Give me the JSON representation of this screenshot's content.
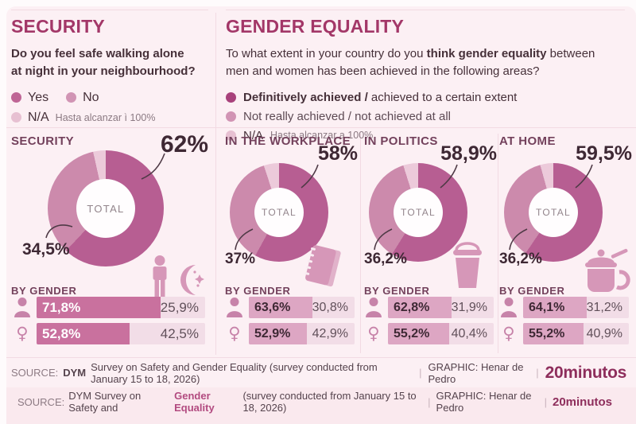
{
  "colors": {
    "card": "#fcf0f4",
    "line": "#f2dae3",
    "title": "#a33768",
    "q": "#463039",
    "gray": "#8b7982",
    "plum": "#73415c",
    "dark": "#3e2834",
    "hole": "#fffdfe",
    "slice_main": "#b75e92",
    "slice_secondary": "#cc8aac",
    "slice_na": "#eccada",
    "dot_achieved": "#a8417b",
    "dot_yes": "#bf6595",
    "dot_no": "#d194b4",
    "dot_na": "#e7c0d2",
    "bar_fill_security": "#c9719e",
    "bar_fill_ge": "#dda6c3",
    "bar_rest": "#f2dde7",
    "bar_rest_text": "#61505a",
    "icon_pink": "#d697b8",
    "icon_dark": "#c783a9",
    "brand": "#8e2e5c",
    "highlight": "#b24b80",
    "source2_bg": "#fae9ee"
  },
  "security_panel": {
    "title": "SECURITY",
    "question_line1": "Do you feel safe walking alone",
    "question_line2": "at night in your neighbourhood?",
    "legend_yes": "Yes",
    "legend_no": "No",
    "legend_na": "N/A",
    "legend_na_note": "Hasta alcanzar ì 100%"
  },
  "gender_panel": {
    "title": "GENDER EQUALITY",
    "question_pre": "To what extent in your country do you ",
    "question_bold": "think gender equality",
    "question_post": " between",
    "question_line2": "men and women has been achieved in the following areas?",
    "legend_achieved_bold": "Definitively achieved /",
    "legend_achieved_rest": " achieved to a certain extent",
    "legend_not": "Not really achieved / not achieved at all",
    "legend_na": "N/A",
    "legend_na_note": "Hasta alcanzar a 100%"
  },
  "charts": [
    {
      "label": "SECURITY",
      "main": "62%",
      "secondary": "34,5%",
      "total": "TOTAL",
      "by_gender": "BY GENDER",
      "male_value": "71,8%",
      "male_rest": "25,9%",
      "female_value": "52,8%",
      "female_rest": "42,5%"
    },
    {
      "label": "IN THE WORKPLACE",
      "main": "58%",
      "secondary": "37%",
      "total": "TOTAL",
      "by_gender": "BY GENDER",
      "male_value": "63,6%",
      "male_rest": "30,8%",
      "female_value": "52,9%",
      "female_rest": "42,9%"
    },
    {
      "label": "IN POLITICS",
      "main": "58,9%",
      "secondary": "36,2%",
      "total": "TOTAL",
      "by_gender": "BY GENDER",
      "male_value": "62,8%",
      "male_rest": "31,9%",
      "female_value": "55,2%",
      "female_rest": "40,4%"
    },
    {
      "label": "AT HOME",
      "main": "59,5%",
      "secondary": "36,2%",
      "total": "TOTAL",
      "by_gender": "BY GENDER",
      "male_value": "64,1%",
      "male_rest": "31,2%",
      "female_value": "55,2%",
      "female_rest": "40,9%"
    }
  ],
  "chart_data": [
    {
      "type": "pie",
      "title": "SECURITY",
      "question": "Do you feel safe walking alone at night in your neighbourhood?",
      "labels": [
        "Yes",
        "No",
        "N/A"
      ],
      "values": [
        62,
        34.5,
        3.5
      ],
      "center_label": "TOTAL",
      "by_gender": {
        "male": [
          71.8,
          25.9
        ],
        "female": [
          52.8,
          42.5
        ]
      }
    },
    {
      "type": "pie",
      "title": "IN THE WORKPLACE",
      "labels": [
        "Definitively achieved / achieved to a certain extent",
        "Not really achieved / not achieved at all",
        "N/A"
      ],
      "values": [
        58,
        37,
        5
      ],
      "center_label": "TOTAL",
      "by_gender": {
        "male": [
          63.6,
          30.8
        ],
        "female": [
          52.9,
          42.9
        ]
      }
    },
    {
      "type": "pie",
      "title": "IN POLITICS",
      "labels": [
        "Definitively achieved / achieved to a certain extent",
        "Not really achieved / not achieved at all",
        "N/A"
      ],
      "values": [
        58.9,
        36.2,
        4.9
      ],
      "center_label": "TOTAL",
      "by_gender": {
        "male": [
          62.8,
          31.9
        ],
        "female": [
          55.2,
          40.4
        ]
      }
    },
    {
      "type": "pie",
      "title": "AT HOME",
      "labels": [
        "Definitively achieved / achieved to a certain extent",
        "Not really achieved / not achieved at all",
        "N/A"
      ],
      "values": [
        59.5,
        36.2,
        4.3
      ],
      "center_label": "TOTAL",
      "by_gender": {
        "male": [
          64.1,
          31.2
        ],
        "female": [
          55.2,
          40.9
        ]
      }
    }
  ],
  "icons": {
    "female_glyph": "♀",
    "male": "male-person-bust",
    "security": "person-walking-and-crescent-moon",
    "workplace": "spiral-notebook",
    "politics": "ballot-box",
    "home": "cooking-pot"
  },
  "source1": {
    "label": "SOURCE:",
    "bold": "DYM",
    "text": "Survey on Safety and Gender Equality (survey conducted from January 15 to 18, 2026)",
    "sep": "|",
    "graphic": "GRAPHIC: Henar de Pedro",
    "brand": "20minutos"
  },
  "source2": {
    "label": "SOURCE:",
    "pre": "DYM Survey on Safety and",
    "highlight": "Gender Equality",
    "post": "(survey conducted from January 15 to 18, 2026)",
    "sep": "|",
    "graphic": "GRAPHIC: Henar de Pedro",
    "brand": "20minutos"
  }
}
